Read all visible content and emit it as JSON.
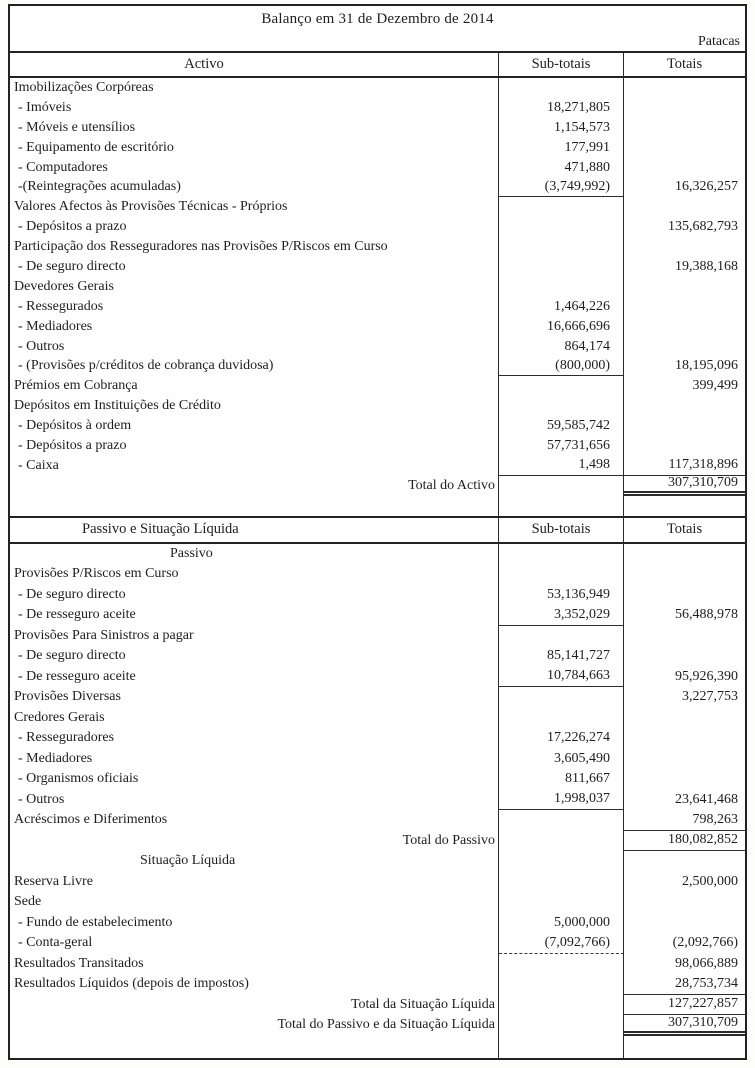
{
  "document": {
    "title": "Balanço em 31 de Dezembro de 2014",
    "currency_label": "Patacas"
  },
  "columns": {
    "subtotals": "Sub-totais",
    "totals": "Totais"
  },
  "sections": [
    {
      "header": "Activo",
      "rows": [
        {
          "label": "Imobilizações Corpóreas"
        },
        {
          "label": "- Imóveis",
          "subtotal": "18,271,805"
        },
        {
          "label": "- Móveis e utensílios",
          "subtotal": "1,154,573"
        },
        {
          "label": "- Equipamento de escritório",
          "subtotal": "177,991"
        },
        {
          "label": "- Computadores",
          "subtotal": "471,880"
        },
        {
          "label": "-(Reintegrações acumuladas)",
          "subtotal": "(3,749,992)",
          "sub_rule": "solid",
          "total": "16,326,257"
        },
        {
          "label": "Valores Afectos às Provisões Técnicas - Próprios"
        },
        {
          "label": "- Depósitos a prazo",
          "total": "135,682,793"
        },
        {
          "label": "Participação dos Resseguradores nas Provisões P/Riscos em Curso"
        },
        {
          "label": "- De seguro directo",
          "total": "19,388,168"
        },
        {
          "label": "Devedores Gerais"
        },
        {
          "label": "- Ressegurados",
          "subtotal": "1,464,226"
        },
        {
          "label": "- Mediadores",
          "subtotal": "16,666,696"
        },
        {
          "label": "- Outros",
          "subtotal": "864,174"
        },
        {
          "label": "- (Provisões p/créditos de cobrança duvidosa)",
          "subtotal": "(800,000)",
          "sub_rule": "solid",
          "total": "18,195,096"
        },
        {
          "label": "Prémios em Cobrança",
          "total": "399,499"
        },
        {
          "label": "Depósitos em Instituições de Crédito"
        },
        {
          "label": "- Depósitos à ordem",
          "subtotal": "59,585,742"
        },
        {
          "label": "- Depósitos a prazo",
          "subtotal": "57,731,656"
        },
        {
          "label": "- Caixa",
          "subtotal": "1,498",
          "sub_rule": "solid",
          "total": "117,318,896",
          "total_rule": "single"
        },
        {
          "label": "Total do Activo",
          "style": "total",
          "total": "307,310,709",
          "total_rule": "double"
        },
        {
          "style": "blank"
        }
      ]
    },
    {
      "header": "Passivo e Situação Líquida",
      "rows": [
        {
          "label": "Passivo",
          "style": "subheader",
          "indent": 160
        },
        {
          "label": "Provisões P/Riscos em Curso"
        },
        {
          "label": "- De seguro directo",
          "subtotal": "53,136,949"
        },
        {
          "label": "- De resseguro aceite",
          "subtotal": "3,352,029",
          "sub_rule": "solid",
          "total": "56,488,978"
        },
        {
          "label": "Provisões Para Sinistros a pagar"
        },
        {
          "label": "- De seguro directo",
          "subtotal": "85,141,727"
        },
        {
          "label": "- De resseguro aceite",
          "subtotal": "10,784,663",
          "sub_rule": "solid",
          "total": "95,926,390"
        },
        {
          "label": "Provisões Diversas",
          "total": "3,227,753"
        },
        {
          "label": "Credores Gerais"
        },
        {
          "label": "- Resseguradores",
          "subtotal": "17,226,274"
        },
        {
          "label": "- Mediadores",
          "subtotal": "3,605,490"
        },
        {
          "label": "- Organismos oficiais",
          "subtotal": "811,667"
        },
        {
          "label": "- Outros",
          "subtotal": "1,998,037",
          "sub_rule": "solid",
          "total": "23,641,468"
        },
        {
          "label": "Acréscimos e Diferimentos",
          "total": "798,263",
          "total_rule": "single"
        },
        {
          "label": "Total do Passivo",
          "style": "total",
          "total": "180,082,852",
          "total_rule": "single"
        },
        {
          "label": "Situação Líquida",
          "style": "subheader",
          "indent": 130
        },
        {
          "label": "Reserva Livre",
          "total": "2,500,000"
        },
        {
          "label": "Sede"
        },
        {
          "label": "- Fundo de estabelecimento",
          "subtotal": "5,000,000"
        },
        {
          "label": "- Conta-geral",
          "subtotal": "(7,092,766)",
          "sub_rule": "dashed",
          "total": "(2,092,766)"
        },
        {
          "label": "Resultados Transitados",
          "total": "98,066,889"
        },
        {
          "label": "Resultados Líquidos (depois de impostos)",
          "total": "28,753,734",
          "total_rule": "single"
        },
        {
          "label": "Total da Situação Líquida",
          "style": "total",
          "total": "127,227,857",
          "total_rule": "single"
        },
        {
          "label": "Total do Passivo e da Situação Líquida",
          "style": "total",
          "total": "307,310,709",
          "total_rule": "double"
        }
      ]
    }
  ]
}
